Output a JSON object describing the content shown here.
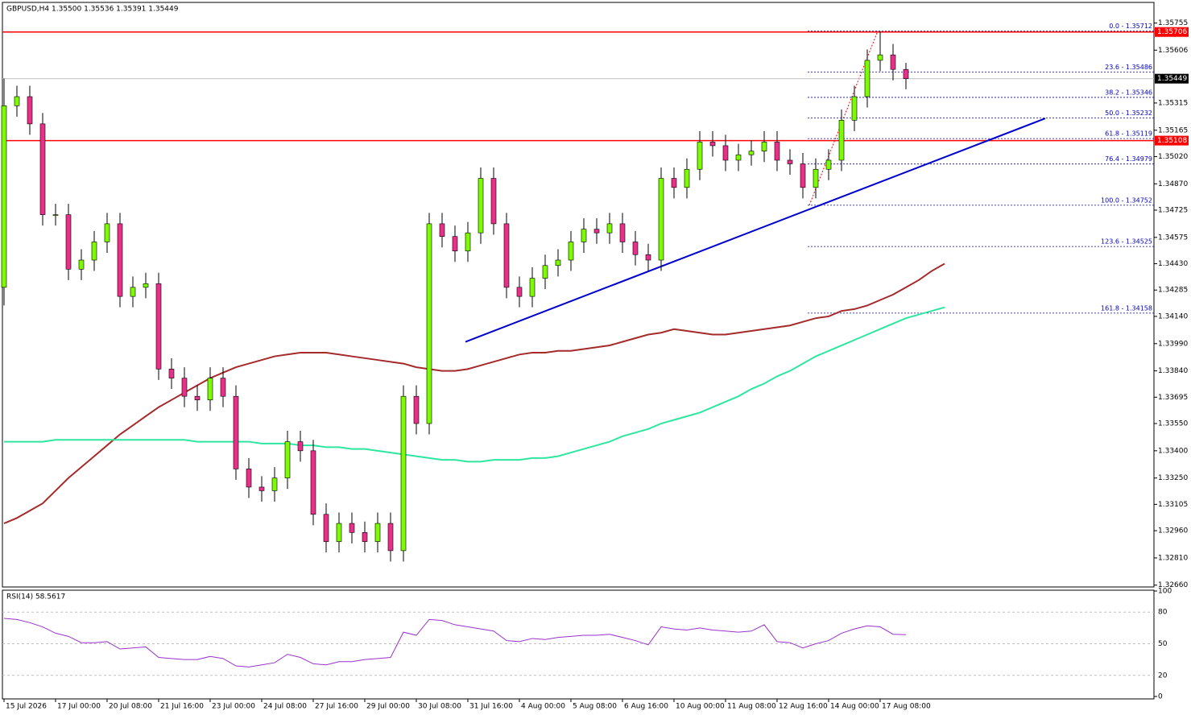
{
  "chart_data": [
    {
      "type": "candlestick",
      "title": "GBPUSD,H4  1.35500 1.35536 1.35391 1.35449",
      "categories": [
        "15 Jul 2026",
        null,
        null,
        null,
        "17 Jul 00:00",
        null,
        null,
        null,
        "20 Jul 08:00",
        null,
        null,
        null,
        "21 Jul 16:00",
        null,
        null,
        null,
        "23 Jul 00:00",
        null,
        null,
        null,
        "24 Jul 08:00",
        null,
        null,
        null,
        "27 Jul 16:00",
        null,
        null,
        null,
        "29 Jul 00:00",
        null,
        null,
        null,
        "30 Jul 08:00",
        null,
        null,
        null,
        "31 Jul 16:00",
        null,
        null,
        null,
        "4 Aug 00:00",
        null,
        null,
        null,
        "5 Aug 08:00",
        null,
        null,
        null,
        "6 Aug 16:00",
        null,
        null,
        null,
        "10 Aug 00:00",
        null,
        null,
        null,
        "11 Aug 08:00",
        null,
        null,
        null,
        "12 Aug 16:00",
        null,
        null,
        null,
        "14 Aug 00:00",
        null,
        null,
        null,
        "17 Aug 08:00",
        null,
        null,
        null,
        null,
        null
      ],
      "open": [
        1.343,
        1.353,
        1.3535,
        1.352,
        1.347,
        1.347,
        1.344,
        1.3445,
        1.3455,
        1.3465,
        1.3425,
        1.343,
        1.3432,
        1.3385,
        1.338,
        1.337,
        1.3368,
        1.338,
        1.337,
        1.333,
        1.332,
        1.3318,
        1.3325,
        1.3345,
        1.334,
        1.3305,
        1.329,
        1.33,
        1.3295,
        1.329,
        1.33,
        1.3285,
        1.337,
        1.3355,
        1.3465,
        1.3458,
        1.345,
        1.346,
        1.349,
        1.3465,
        1.343,
        1.3425,
        1.3435,
        1.3442,
        1.3445,
        1.3455,
        1.3462,
        1.346,
        1.3465,
        1.3455,
        1.3448,
        1.3445,
        1.349,
        1.3485,
        1.3495,
        1.351,
        1.3508,
        1.35,
        1.3503,
        1.3505,
        1.351,
        1.35,
        1.3498,
        1.3485,
        1.3495,
        1.35,
        1.3522,
        1.3535,
        1.3555,
        1.3558,
        1.355,
        null,
        null,
        null
      ],
      "high": [
        1.3545,
        1.3541,
        1.3541,
        1.3526,
        1.3476,
        1.3476,
        1.3451,
        1.3461,
        1.3471,
        1.3471,
        1.3436,
        1.3438,
        1.3438,
        1.3391,
        1.3386,
        1.3376,
        1.3386,
        1.3386,
        1.3376,
        1.3336,
        1.3326,
        1.3331,
        1.3351,
        1.3351,
        1.3346,
        1.3311,
        1.3306,
        1.3306,
        1.3301,
        1.3306,
        1.3306,
        1.3376,
        1.3376,
        1.3471,
        1.3471,
        1.3464,
        1.3466,
        1.3496,
        1.3496,
        1.3471,
        1.3436,
        1.3441,
        1.3448,
        1.3451,
        1.3461,
        1.3468,
        1.3468,
        1.3471,
        1.3471,
        1.3461,
        1.3454,
        1.3496,
        1.3496,
        1.3501,
        1.3516,
        1.3516,
        1.3514,
        1.3509,
        1.3511,
        1.3516,
        1.3516,
        1.3506,
        1.3504,
        1.3501,
        1.3506,
        1.3528,
        1.3541,
        1.3561,
        1.3571,
        1.3564,
        1.35536,
        null,
        null,
        null
      ],
      "low": [
        1.342,
        1.3524,
        1.3514,
        1.3464,
        1.3464,
        1.3434,
        1.3434,
        1.3439,
        1.3449,
        1.3419,
        1.3419,
        1.3424,
        1.3379,
        1.3374,
        1.3364,
        1.3362,
        1.3362,
        1.3364,
        1.3324,
        1.3314,
        1.3312,
        1.3312,
        1.3319,
        1.3334,
        1.3299,
        1.3284,
        1.3284,
        1.3289,
        1.3284,
        1.3284,
        1.3279,
        1.3279,
        1.3349,
        1.3349,
        1.3452,
        1.3444,
        1.3444,
        1.3454,
        1.3459,
        1.3424,
        1.3419,
        1.3419,
        1.3429,
        1.3436,
        1.3439,
        1.3449,
        1.3454,
        1.3454,
        1.3449,
        1.3442,
        1.3439,
        1.3439,
        1.3479,
        1.3479,
        1.3489,
        1.3502,
        1.3494,
        1.3494,
        1.3497,
        1.3499,
        1.3494,
        1.3492,
        1.3479,
        1.3479,
        1.3489,
        1.3494,
        1.3516,
        1.3529,
        1.3549,
        1.3544,
        1.35391,
        null,
        null,
        null
      ],
      "close": [
        1.353,
        1.3535,
        1.352,
        1.347,
        1.347,
        1.344,
        1.3445,
        1.3455,
        1.3465,
        1.3425,
        1.343,
        1.3432,
        1.3385,
        1.338,
        1.337,
        1.3368,
        1.338,
        1.337,
        1.333,
        1.332,
        1.3318,
        1.3325,
        1.3345,
        1.334,
        1.3305,
        1.329,
        1.33,
        1.3295,
        1.329,
        1.33,
        1.3285,
        1.337,
        1.3355,
        1.3465,
        1.3458,
        1.345,
        1.346,
        1.349,
        1.3465,
        1.343,
        1.3425,
        1.3435,
        1.3442,
        1.3445,
        1.3455,
        1.3462,
        1.346,
        1.3465,
        1.3455,
        1.3448,
        1.3445,
        1.349,
        1.3485,
        1.3495,
        1.351,
        1.3508,
        1.35,
        1.3503,
        1.3505,
        1.351,
        1.35,
        1.3498,
        1.3485,
        1.3495,
        1.35,
        1.3522,
        1.3535,
        1.3555,
        1.3558,
        1.355,
        1.35449,
        null,
        null,
        null
      ],
      "up_color": "#7cfc00",
      "down_color": "#e8308a",
      "moving_averages": [
        {
          "color": "#a52a2a",
          "values": [
            1.33,
            1.3303,
            1.3307,
            1.3311,
            1.3318,
            1.3325,
            1.3331,
            1.3337,
            1.3343,
            1.3349,
            1.3354,
            1.3359,
            1.3364,
            1.3368,
            1.3372,
            1.3376,
            1.338,
            1.3383,
            1.3386,
            1.3388,
            1.339,
            1.3392,
            1.3393,
            1.3394,
            1.3394,
            1.3394,
            1.3393,
            1.3392,
            1.3391,
            1.339,
            1.3389,
            1.3388,
            1.3386,
            1.3385,
            1.3384,
            1.3384,
            1.3385,
            1.3387,
            1.3389,
            1.3391,
            1.3393,
            1.3394,
            1.3394,
            1.3395,
            1.3395,
            1.3396,
            1.3397,
            1.3398,
            1.34,
            1.3402,
            1.3404,
            1.3405,
            1.3407,
            1.3406,
            1.3405,
            1.3404,
            1.3404,
            1.3405,
            1.3406,
            1.3407,
            1.3408,
            1.3409,
            1.3411,
            1.3413,
            1.3414,
            1.3417,
            1.3418,
            1.342,
            1.3423,
            1.3426,
            1.343,
            1.3434,
            1.3439,
            1.3443
          ]
        },
        {
          "color": "#2ee6a0",
          "values": [
            1.3345,
            1.3345,
            1.3345,
            1.3345,
            1.3346,
            1.3346,
            1.3346,
            1.3346,
            1.3346,
            1.3346,
            1.3346,
            1.3346,
            1.3346,
            1.3346,
            1.3346,
            1.3345,
            1.3345,
            1.3345,
            1.3345,
            1.3345,
            1.3344,
            1.3344,
            1.3344,
            1.3343,
            1.3343,
            1.3342,
            1.3342,
            1.3341,
            1.3341,
            1.334,
            1.3339,
            1.3338,
            1.3337,
            1.3336,
            1.3335,
            1.3335,
            1.3334,
            1.3334,
            1.3335,
            1.3335,
            1.3335,
            1.3336,
            1.3336,
            1.3337,
            1.3339,
            1.3341,
            1.3343,
            1.3345,
            1.3348,
            1.335,
            1.3352,
            1.3355,
            1.3357,
            1.3359,
            1.3361,
            1.3364,
            1.3367,
            1.337,
            1.3374,
            1.3377,
            1.3381,
            1.3384,
            1.3388,
            1.3392,
            1.3395,
            1.3398,
            1.3401,
            1.3404,
            1.3407,
            1.341,
            1.3413,
            1.3415,
            1.3417,
            1.3419
          ]
        }
      ],
      "hlines": [
        {
          "value": 1.35706,
          "color": "#ff0000"
        },
        {
          "value": 1.35108,
          "color": "#ff0000"
        }
      ],
      "fibonacci": {
        "color": "#0000cc",
        "levels": [
          {
            "value": 1.35712,
            "label": "0.0 - 1.35712"
          },
          {
            "value": 1.35486,
            "label": "23.6 - 1.35486"
          },
          {
            "value": 1.35346,
            "label": "38.2 - 1.35346"
          },
          {
            "value": 1.35232,
            "label": "50.0 - 1.35232"
          },
          {
            "value": 1.35119,
            "label": "61.8 - 1.35119"
          },
          {
            "value": 1.34979,
            "label": "76.4 - 1.34979"
          },
          {
            "value": 1.34752,
            "label": "100.0 - 1.34752"
          },
          {
            "value": 1.34525,
            "label": "123.6 - 1.34525"
          },
          {
            "value": 1.34158,
            "label": "161.8 - 1.34158"
          }
        ]
      },
      "trendline": {
        "color": "#0000cc",
        "values": [
          1.34,
          1.3523
        ]
      },
      "ylim": [
        1.3265,
        1.3586
      ],
      "yticks": [
        1.35755,
        1.35606,
        1.35315,
        1.35165,
        {
          "value": 1.3502,
          "label": "1.35020"
        },
        {
          "value": 1.3487,
          "label": "1.34870"
        },
        1.34725,
        1.34575,
        {
          "value": 1.3443,
          "label": "1.34430"
        },
        1.34285,
        {
          "value": 1.3414,
          "label": "1.34140"
        },
        {
          "value": 1.3399,
          "label": "1.33990"
        },
        {
          "value": 1.3384,
          "label": "1.33840"
        },
        1.33695,
        {
          "value": 1.3355,
          "label": "1.33550"
        },
        {
          "value": 1.334,
          "label": "1.33400"
        },
        {
          "value": 1.3325,
          "label": "1.33250"
        },
        1.33105,
        {
          "value": 1.3296,
          "label": "1.32960"
        },
        {
          "value": 1.3281,
          "label": "1.32810"
        },
        {
          "value": 1.3266,
          "label": "1.32660"
        }
      ]
    },
    {
      "type": "line",
      "title": "RSI(14) 58.5617",
      "color": "#9932cc",
      "values": [
        74,
        73,
        70,
        66,
        60,
        57,
        51,
        51,
        52,
        45,
        46,
        47,
        37,
        36,
        35,
        35,
        38,
        36,
        29,
        28,
        30,
        32,
        40,
        37,
        31,
        30,
        33,
        33,
        35,
        36,
        37,
        61,
        58,
        73,
        72,
        68,
        66,
        64,
        62,
        53,
        52,
        55,
        54,
        56,
        57,
        58,
        58,
        59,
        56,
        53,
        49,
        66,
        64,
        63,
        65,
        63,
        62,
        61,
        62,
        68,
        52,
        51,
        46,
        50,
        53,
        60,
        64,
        67,
        66,
        59,
        58.5617,
        null,
        null,
        null
      ],
      "ylim": [
        0,
        100
      ],
      "yticks": [
        100,
        80,
        50,
        20,
        0
      ],
      "grid": true
    }
  ]
}
